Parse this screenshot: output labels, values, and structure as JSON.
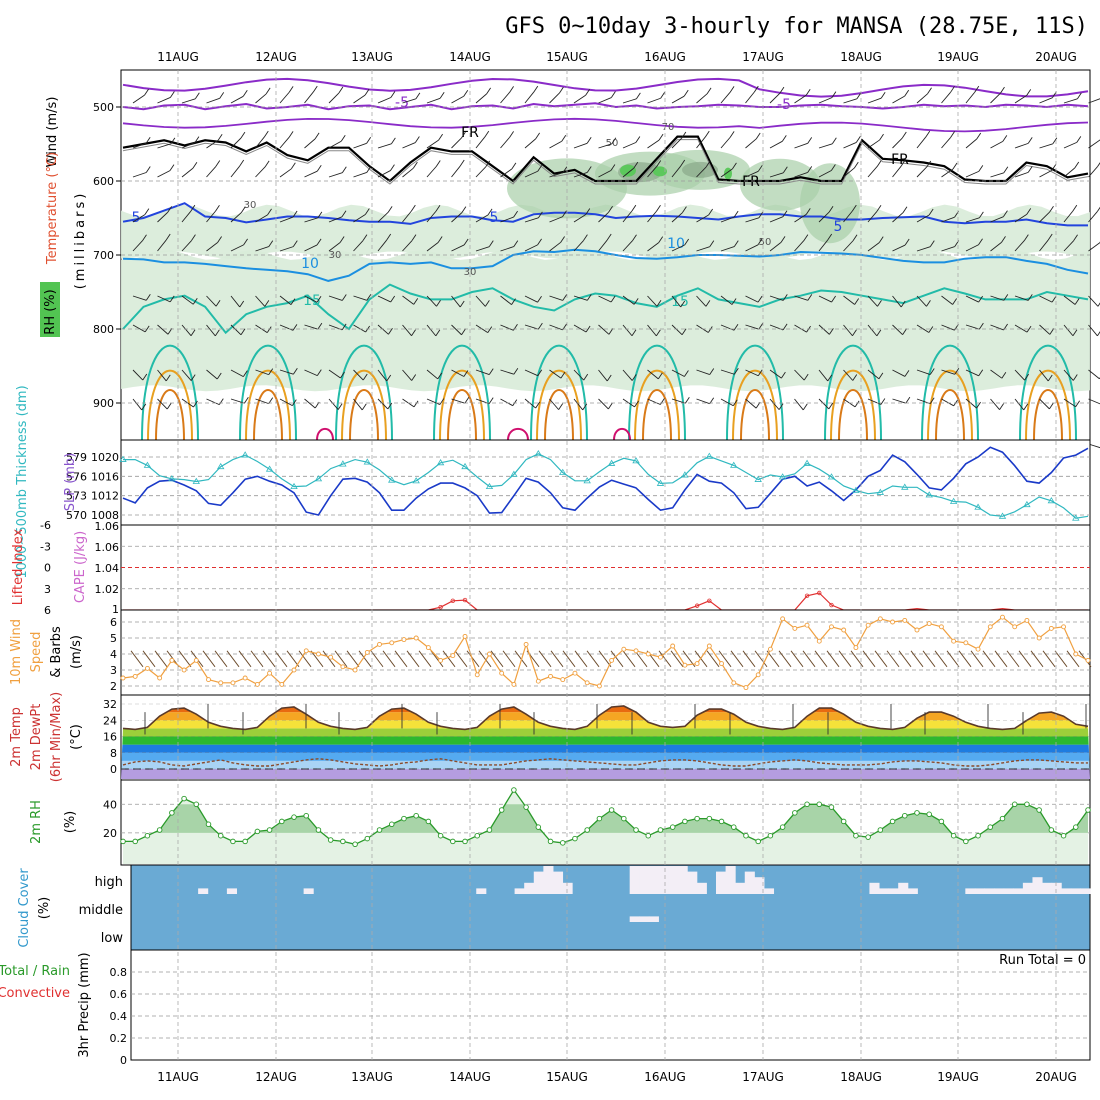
{
  "title": "GFS 0~10day 3-hourly for MANSA (28.75E, 11S)",
  "dates": [
    "11AUG",
    "12AUG",
    "13AUG",
    "14AUG",
    "15AUG",
    "16AUG",
    "17AUG",
    "18AUG",
    "19AUG",
    "20AUG"
  ],
  "colors": {
    "rh_fill": "#d8ebd8",
    "rh_mid": "#a8cfa8",
    "rh_dark": "#8aa88a",
    "rh_green": "#5cc85c",
    "t_purple": "#8a2bc8",
    "t_blue1": "#2244dd",
    "t_blue2": "#1b8fe0",
    "t_teal": "#22bba8",
    "t_orange": "#e8a020",
    "t_orange2": "#d97a18",
    "t_magenta": "#d0106e",
    "fr": "#000000",
    "slp": "#1a3ac8",
    "thick": "#30b8c0",
    "li_line": "#e03030",
    "wind10": "#f0a040",
    "rh2m": "#2a9a2a",
    "cloud": "#6aaad4",
    "cloud_white": "#f3eef6"
  },
  "panels": {
    "upper_air": {
      "y_axis_label": "(millibars)",
      "label_wind": "Wind (m/s)",
      "label_temp": "Temperature (°C)",
      "label_rh": "RH (%)",
      "pressure_ticks": [
        500,
        600,
        700,
        800,
        900
      ],
      "contour_labels": [
        "-5",
        "-5",
        "FR",
        "FR",
        "FR",
        "5",
        "5",
        "5",
        "10",
        "10",
        "15",
        "15"
      ],
      "rh_labels": [
        "30",
        "30",
        "30",
        "50",
        "50",
        "70"
      ]
    },
    "slp_thickness": {
      "label_thick": "1000~500mb Thickness (dm)",
      "label_slp": "SLP (mb)",
      "thick_ticks": [
        "579",
        "576",
        "573",
        "570"
      ],
      "slp_ticks": [
        "1020",
        "1016",
        "1012",
        "1008"
      ]
    },
    "stability": {
      "label_li": "Lifted Index",
      "label_cape": "CAPE (J/kg)",
      "li_ticks": [
        "-6",
        "-3",
        "0",
        "3",
        "6"
      ],
      "cape_ticks": [
        "1.06",
        "1.06",
        "1.04",
        "1.02",
        "1"
      ]
    },
    "wind10m": {
      "label_1": "10m Wind",
      "label_2": "Speed",
      "label_3": "& Barbs",
      "unit": "(m/s)",
      "ticks": [
        "6",
        "5",
        "4",
        "3",
        "2"
      ]
    },
    "temp2m": {
      "label_1": "2m Temp",
      "label_2": "2m DewPt",
      "label_3": "(6hr Min/Max)",
      "unit": "(°C)",
      "ticks": [
        "32",
        "24",
        "16",
        "8",
        "0"
      ]
    },
    "rh2m": {
      "label": "2m RH",
      "unit": "(%)",
      "ticks": [
        "40",
        "20"
      ]
    },
    "cloud": {
      "label": "Cloud Cover",
      "unit": "(%)",
      "levels": [
        "high",
        "middle",
        "low"
      ]
    },
    "precip": {
      "label_total": "Total / Rain",
      "label_conv": "Convective",
      "unit": "3hr Precip (mm)",
      "run_total": "Run Total = 0",
      "ticks": [
        "0.8",
        "0.6",
        "0.4",
        "0.2",
        "0"
      ]
    }
  },
  "chart_data": {
    "type": "line",
    "title": "GFS 0~10day 3-hourly for MANSA (28.75E, 11S)",
    "x_dates": [
      "11AUG",
      "12AUG",
      "13AUG",
      "14AUG",
      "15AUG",
      "16AUG",
      "17AUG",
      "18AUG",
      "19AUG",
      "20AUG"
    ],
    "slp_mb": [
      1011.5,
      1010.5,
      1013.6,
      1015,
      1015.2,
      1014.2,
      1013,
      1010.4,
      1010,
      1012.6,
      1015.4,
      1016,
      1015,
      1014.2,
      1012.6,
      1008.6,
      1008,
      1012,
      1015.4,
      1015.6,
      1014.8,
      1012.6,
      1009,
      1009,
      1011.5,
      1013.4,
      1014.6,
      1014.6,
      1013.6,
      1012,
      1008.4,
      1008.5,
      1012,
      1015.6,
      1014.8,
      1012.6,
      1009.5,
      1009,
      1011.5,
      1013.8,
      1015.2,
      1014.4,
      1013.6,
      1011.2,
      1009,
      1009.5,
      1013.2,
      1016.4,
      1015,
      1014.6,
      1012.6,
      1009.3,
      1009.6,
      1012.5,
      1015.4,
      1016,
      1014,
      1014.8,
      1013,
      1011,
      1013.2,
      1016,
      1017.2,
      1020.4,
      1019,
      1016.4,
      1013.6,
      1013.2,
      1015.6,
      1018.6,
      1020,
      1022,
      1021,
      1018.2,
      1015,
      1014.6,
      1016.8,
      1019.8,
      1020.4,
      1021.8
    ],
    "thickness_dm": [
      578.6,
      578.6,
      577.7,
      576.1,
      575.6,
      575.5,
      575.2,
      575.5,
      577.5,
      578.6,
      579.3,
      578.3,
      577.1,
      575.6,
      574.4,
      574.5,
      575.6,
      577.2,
      577.9,
      578.6,
      578.2,
      577,
      575.4,
      574.7,
      575.3,
      576.6,
      578.1,
      578.5,
      577.5,
      575.9,
      574.4,
      574.6,
      576.3,
      578.6,
      579.5,
      578.6,
      576.6,
      575.3,
      575.3,
      576.7,
      578,
      578.8,
      578.4,
      576.3,
      574.9,
      575,
      576.2,
      578.1,
      579.1,
      578.4,
      577.7,
      576.6,
      575.5,
      576.2,
      575.9,
      576.4,
      578,
      577.1,
      575.9,
      574.5,
      573.8,
      573.3,
      573.5,
      574.5,
      574.3,
      574.3,
      573.1,
      572.7,
      572.1,
      572,
      571.2,
      570,
      569.8,
      570.5,
      571.6,
      572.8,
      572.2,
      571.1,
      569.5,
      569.8
    ],
    "wind10m_ms": [
      2.5,
      2.6,
      3.1,
      2.5,
      3.6,
      3,
      3.6,
      2.4,
      2.2,
      2.2,
      2.5,
      2.1,
      2.8,
      2.1,
      3,
      4.2,
      4,
      3.8,
      3.2,
      3,
      4.1,
      4.6,
      4.7,
      4.9,
      5,
      4.4,
      3.6,
      3.9,
      5.1,
      2.7,
      4,
      2.8,
      2.1,
      4.6,
      2.3,
      2.6,
      2.4,
      2.8,
      2.2,
      2,
      3.6,
      4.3,
      4.2,
      4,
      3.8,
      4.5,
      3.3,
      3.4,
      4.5,
      3.4,
      2.2,
      1.9,
      2.7,
      4.3,
      6.2,
      5.6,
      5.8,
      4.8,
      5.7,
      5.5,
      4.4,
      5.8,
      6.2,
      6,
      6.1,
      5.5,
      5.9,
      5.7,
      4.8,
      4.7,
      4.3,
      5.7,
      6.3,
      5.7,
      6.1,
      5,
      5.6,
      5.7,
      4,
      3.6
    ],
    "temp2m_c": [
      20,
      19.5,
      20.5,
      26,
      29.5,
      30,
      27,
      23,
      21,
      20,
      19.5,
      20.5,
      26,
      30,
      30.5,
      27,
      23,
      21,
      20,
      19.5,
      20.5,
      26,
      29.5,
      30,
      27,
      23,
      21,
      20,
      19.5,
      20.5,
      26,
      29.5,
      30.5,
      27,
      23,
      21,
      20,
      19.5,
      21,
      26.5,
      30.5,
      31,
      28,
      23,
      21,
      20.5,
      21,
      26.5,
      29.5,
      29.5,
      27,
      23,
      21,
      20,
      19.5,
      20.5,
      26,
      30,
      30,
      27,
      23,
      21,
      20,
      19.5,
      20.5,
      25,
      28,
      28,
      26,
      23,
      21,
      20,
      19.5,
      20,
      24,
      27.5,
      28,
      26,
      22,
      21
    ],
    "dewpoint2m_c": [
      2,
      3.5,
      4,
      3.5,
      2,
      1.5,
      2.5,
      3.5,
      4.5,
      3,
      2,
      1.5,
      1.5,
      2.5,
      3.5,
      4.5,
      5,
      4.5,
      3.5,
      2.5,
      2,
      1.5,
      2,
      3,
      3.5,
      4.5,
      5,
      4,
      3,
      2,
      2,
      2,
      3,
      4,
      4.5,
      5,
      4.5,
      4,
      3.5,
      3,
      2.5,
      2,
      2,
      3,
      4,
      4.5,
      4.5,
      4,
      3,
      2,
      1.5,
      1.5,
      2.5,
      3.5,
      4,
      4.5,
      4,
      3,
      2.5,
      2,
      2,
      2,
      2.5,
      3.5,
      4,
      4,
      3.5,
      3,
      2,
      1.5,
      1.5,
      2,
      3,
      4,
      4.5,
      4.5,
      4,
      3.5,
      3,
      3
    ],
    "rh2m_pct": [
      14,
      14,
      18,
      22,
      34,
      44,
      40,
      26,
      18,
      14,
      14,
      21,
      22,
      28,
      31,
      32,
      22,
      15,
      14,
      12,
      16,
      22,
      26,
      30,
      32,
      28,
      18,
      14,
      14,
      18,
      22,
      36,
      50,
      38,
      24,
      14,
      13,
      16,
      22,
      30,
      36,
      30,
      22,
      18,
      22,
      24,
      28,
      30,
      30,
      28,
      24,
      18,
      14,
      18,
      24,
      34,
      40,
      40,
      38,
      28,
      18,
      17,
      22,
      28,
      32,
      34,
      33,
      28,
      18,
      14,
      18,
      24,
      30,
      40,
      40,
      36,
      22,
      18,
      24,
      36
    ],
    "lifted_index": [
      6,
      6,
      6,
      6,
      6,
      6,
      6,
      6,
      6,
      6,
      6,
      6,
      6,
      6,
      6,
      6,
      6,
      6,
      6,
      6,
      6,
      6,
      6,
      6,
      6,
      6,
      5.6,
      4.7,
      4.6,
      6,
      6,
      6,
      6,
      6,
      6,
      6,
      6,
      6,
      6,
      6,
      6,
      6,
      6,
      6,
      6,
      6,
      6,
      5.4,
      4.7,
      6,
      6,
      6,
      6,
      6,
      6,
      6,
      4,
      3.6,
      5.3,
      6,
      6,
      6,
      6,
      6,
      6,
      5.8,
      6,
      6,
      6,
      6,
      6,
      6,
      5.8,
      6,
      6,
      6,
      6,
      6,
      6,
      6
    ],
    "precip_total_mm": 0,
    "series": [
      {
        "name": "SLP (mb)"
      },
      {
        "name": "1000~500mb Thickness (dm)"
      },
      {
        "name": "10m Wind Speed"
      },
      {
        "name": "2m Temp"
      },
      {
        "name": "2m DewPt"
      },
      {
        "name": "2m RH"
      },
      {
        "name": "Lifted Index"
      }
    ],
    "cloud_cover": {
      "high": [
        0,
        0,
        0,
        0,
        0,
        0,
        0,
        20,
        0,
        0,
        20,
        0,
        0,
        0,
        0,
        0,
        0,
        0,
        20,
        0,
        0,
        0,
        0,
        0,
        0,
        0,
        0,
        0,
        0,
        0,
        0,
        0,
        0,
        0,
        0,
        0,
        20,
        0,
        0,
        0,
        20,
        40,
        80,
        100,
        80,
        40,
        0,
        0,
        0,
        0,
        0,
        0,
        100,
        100,
        100,
        100,
        100,
        100,
        80,
        40,
        0,
        80,
        100,
        40,
        80,
        60,
        20,
        0,
        0,
        0,
        0,
        0,
        0,
        0,
        0,
        0,
        0,
        40,
        20,
        20,
        40,
        20,
        0,
        0,
        0,
        0,
        0,
        20,
        20,
        20,
        20,
        20,
        20,
        40,
        60,
        40,
        40,
        20,
        20,
        20
      ],
      "middle": [
        0,
        0,
        0,
        0,
        0,
        0,
        0,
        0,
        0,
        0,
        0,
        0,
        0,
        0,
        0,
        0,
        0,
        0,
        0,
        0,
        0,
        0,
        0,
        0,
        0,
        0,
        0,
        0,
        0,
        0,
        0,
        0,
        0,
        0,
        0,
        0,
        0,
        0,
        0,
        0,
        0,
        0,
        0,
        0,
        0,
        0,
        0,
        0,
        0,
        0,
        0,
        0,
        20,
        20,
        20,
        0,
        0,
        0,
        0,
        0,
        0,
        0,
        0,
        0,
        0,
        0,
        0,
        0,
        0,
        0,
        0,
        0,
        0,
        0,
        0,
        0,
        0,
        0,
        0,
        0,
        0,
        0,
        0,
        0,
        0,
        0,
        0,
        0,
        0,
        0,
        0,
        0,
        0,
        0,
        0,
        0,
        0,
        0,
        0,
        0
      ],
      "low": [
        0,
        0,
        0,
        0,
        0,
        0,
        0,
        0,
        0,
        0,
        0,
        0,
        0,
        0,
        0,
        0,
        0,
        0,
        0,
        0,
        0,
        0,
        0,
        0,
        0,
        0,
        0,
        0,
        0,
        0,
        0,
        0,
        0,
        0,
        0,
        0,
        0,
        0,
        0,
        0,
        0,
        0,
        0,
        0,
        0,
        0,
        0,
        0,
        0,
        0,
        0,
        0,
        0,
        0,
        0,
        0,
        0,
        0,
        0,
        0,
        0,
        0,
        0,
        0,
        0,
        0,
        0,
        0,
        0,
        0,
        0,
        0,
        0,
        0,
        0,
        0,
        0,
        0,
        0,
        0,
        0,
        0,
        0,
        0,
        0,
        0,
        0,
        0,
        0,
        0,
        0,
        0,
        0,
        0,
        0,
        0,
        0,
        0,
        0,
        0
      ]
    },
    "upper_air_isotherms": [
      {
        "label": "-5",
        "pressure_mb": [
          500,
          503,
          498,
          497,
          503,
          499,
          496,
          502,
          500,
          497,
          503,
          499,
          498,
          503,
          500,
          497,
          503,
          499,
          498,
          502,
          496,
          499,
          497,
          495,
          500,
          498,
          502,
          500,
          499,
          497,
          498,
          500,
          500,
          498,
          497,
          499,
          500,
          502,
          500,
          497,
          499,
          498,
          500,
          497,
          498,
          500,
          497,
          499
        ]
      },
      {
        "label": "0 (FR)",
        "pressure_mb": [
          555,
          550,
          545,
          552,
          545,
          548,
          560,
          548,
          565,
          572,
          555,
          555,
          580,
          600,
          575,
          555,
          560,
          560,
          580,
          600,
          568,
          590,
          585,
          600,
          600,
          600,
          570,
          540,
          540,
          598,
          600,
          600,
          600,
          595,
          600,
          600,
          545,
          570,
          572,
          575,
          580,
          598,
          600,
          600,
          575,
          580,
          595,
          590
        ]
      },
      {
        "label": "5",
        "pressure_mb": [
          655,
          650,
          640,
          630,
          648,
          650,
          656,
          652,
          648,
          648,
          650,
          653,
          655,
          655,
          658,
          650,
          648,
          648,
          653,
          655,
          645,
          643,
          643,
          645,
          650,
          648,
          647,
          648,
          650,
          652,
          648,
          645,
          645,
          648,
          648,
          652,
          652,
          650,
          649,
          648,
          655,
          657,
          655,
          655,
          652,
          657,
          660,
          660
        ]
      },
      {
        "label": "10",
        "pressure_mb": [
          705,
          706,
          710,
          710,
          712,
          715,
          718,
          720,
          722,
          726,
          735,
          728,
          712,
          710,
          712,
          710,
          718,
          718,
          715,
          700,
          695,
          696,
          693,
          695,
          700,
          704,
          705,
          703,
          700,
          700,
          701,
          702,
          700,
          696,
          697,
          698,
          700,
          704,
          708,
          710,
          710,
          705,
          703,
          703,
          708,
          712,
          720,
          725
        ]
      },
      {
        "label": "15",
        "pressure_mb": [
          800,
          770,
          760,
          755,
          770,
          805,
          780,
          770,
          765,
          755,
          780,
          800,
          760,
          740,
          752,
          760,
          760,
          750,
          745,
          760,
          770,
          775,
          760,
          752,
          755,
          765,
          770,
          755,
          745,
          760,
          765,
          770,
          760,
          755,
          748,
          750,
          755,
          760,
          765,
          755,
          745,
          752,
          760,
          760,
          760,
          750,
          755,
          760
        ]
      }
    ]
  }
}
